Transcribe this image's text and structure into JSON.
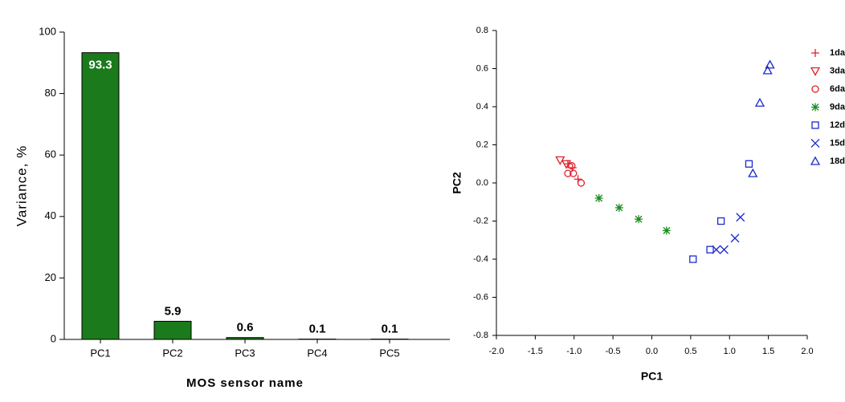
{
  "chart_data": [
    {
      "type": "bar",
      "xlabel": "MOS sensor name",
      "ylabel": "Variance, %",
      "categories": [
        "PC1",
        "PC2",
        "PC3",
        "PC4",
        "PC5"
      ],
      "values": [
        93.3,
        5.9,
        0.6,
        0.1,
        0.1
      ],
      "color": "#1b7a1b",
      "ylim": [
        0,
        100
      ],
      "yticks": [
        0,
        20,
        40,
        60,
        80,
        100
      ]
    },
    {
      "type": "scatter",
      "xlabel": "PC1",
      "ylabel": "PC2",
      "xlim": [
        -2,
        2
      ],
      "xticks": [
        {
          "value": -2,
          "label": "-2.0"
        },
        -1.5,
        {
          "value": -1,
          "label": "-1.0"
        },
        -0.5,
        {
          "value": 0,
          "label": "0.0"
        },
        0.5,
        {
          "value": 1,
          "label": "1.0"
        },
        1.5,
        {
          "value": 2,
          "label": "2.0"
        }
      ],
      "ylim": [
        -0.8,
        0.8
      ],
      "yticks": [
        -0.8,
        -0.6,
        -0.4,
        -0.2,
        {
          "value": 0,
          "label": "0.0"
        },
        0.2,
        0.4,
        0.6,
        0.8
      ],
      "legend": "right",
      "series": [
        {
          "name": "1da",
          "color": "#e0202a",
          "marker": "plus",
          "x": [
            -1.08,
            -1.02,
            -0.95
          ],
          "values": [
            0.1,
            0.08,
            0.02
          ]
        },
        {
          "name": "3da",
          "color": "#e0202a",
          "marker": "triangle-down",
          "x": [
            -1.18,
            -1.1
          ],
          "values": [
            0.12,
            0.1
          ]
        },
        {
          "name": "6da",
          "color": "#e0202a",
          "marker": "circle",
          "x": [
            -1.03,
            -1.08,
            -1.01,
            -0.91
          ],
          "values": [
            0.09,
            0.05,
            0.05,
            0.0
          ]
        },
        {
          "name": "9da",
          "color": "#1b8a1b",
          "marker": "star",
          "x": [
            -0.68,
            -0.42,
            -0.17,
            0.19
          ],
          "values": [
            -0.08,
            -0.13,
            -0.19,
            -0.25
          ]
        },
        {
          "name": "12d",
          "color": "#1a2ad0",
          "marker": "square",
          "x": [
            0.53,
            0.75,
            0.89,
            1.25
          ],
          "values": [
            -0.4,
            -0.35,
            -0.2,
            0.1
          ]
        },
        {
          "name": "15d",
          "color": "#1a2ad0",
          "marker": "x",
          "x": [
            0.83,
            0.93,
            1.07,
            1.14
          ],
          "values": [
            -0.35,
            -0.35,
            -0.29,
            -0.18
          ]
        },
        {
          "name": "18d",
          "color": "#1a2ad0",
          "marker": "triangle",
          "x": [
            1.3,
            1.39,
            1.49,
            1.52
          ],
          "values": [
            0.05,
            0.42,
            0.59,
            0.62
          ]
        }
      ]
    }
  ]
}
